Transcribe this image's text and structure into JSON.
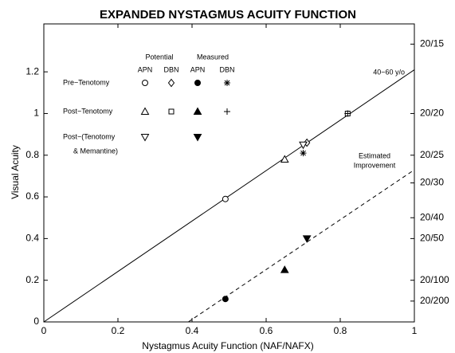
{
  "chart_data": {
    "type": "scatter",
    "title": "EXPANDED NYSTAGMUS ACUITY FUNCTION",
    "x_label": "Nystagmus Acuity Function (NAF/NAFX)",
    "y_label": "Visual Acuity",
    "xlim": [
      0,
      1
    ],
    "xticks": [
      0,
      0.2,
      0.4,
      0.6,
      0.8,
      1
    ],
    "ylim": [
      0,
      1.43
    ],
    "yticks": [
      0,
      0.2,
      0.4,
      0.6,
      0.8,
      1,
      1.2
    ],
    "y2lim": [
      0,
      1.43
    ],
    "y2ticks": [
      {
        "value": 1.333,
        "label": "20/15"
      },
      {
        "value": 1,
        "label": "20/20"
      },
      {
        "value": 0.8,
        "label": "20/25"
      },
      {
        "value": 0.667,
        "label": "20/30"
      },
      {
        "value": 0.5,
        "label": "20/40"
      },
      {
        "value": 0.4,
        "label": "20/50"
      },
      {
        "value": 0.2,
        "label": "20/100"
      },
      {
        "value": 0.1,
        "label": "20/200"
      }
    ],
    "color": "#000000",
    "legend": {
      "groups": [
        "Potential",
        "Measured"
      ],
      "columns": [
        "APN",
        "DBN",
        "APN",
        "DBN"
      ],
      "rows": [
        "Pre−Tenotomy",
        "Post−Tenotomy",
        "Post−(Tenotomy",
        "& Memantine)"
      ]
    },
    "series": [
      {
        "marker": "o",
        "x": [
          0.49
        ],
        "values": [
          0.59
        ]
      },
      {
        "marker": "d",
        "x": [
          0.71
        ],
        "values": [
          0.86
        ]
      },
      {
        "marker": "filled-o",
        "x": [
          0.49
        ],
        "values": [
          0.11
        ]
      },
      {
        "marker": "*",
        "x": [
          0.7
        ],
        "values": [
          0.81
        ]
      },
      {
        "marker": "^",
        "x": [
          0.65
        ],
        "values": [
          0.78
        ]
      },
      {
        "marker": "s",
        "x": [
          0.82
        ],
        "values": [
          1.0
        ]
      },
      {
        "marker": "filled-^",
        "x": [
          0.65
        ],
        "values": [
          0.25
        ]
      },
      {
        "marker": "+",
        "x": [
          0.82
        ],
        "values": [
          1.0
        ]
      },
      {
        "marker": "v",
        "x": [
          0.7
        ],
        "values": [
          0.85
        ]
      },
      {
        "marker": "filled-v",
        "x": [
          0.71
        ],
        "values": [
          0.4
        ]
      }
    ],
    "lines": [
      {
        "dash": false,
        "x": [
          0,
          1
        ],
        "values": [
          0,
          1.21
        ]
      },
      {
        "dash": true,
        "x": [
          0.39,
          1
        ],
        "values": [
          0,
          0.73
        ]
      }
    ],
    "annotations": [
      "40−60 y/o",
      "Estimated",
      "Improvement"
    ]
  }
}
